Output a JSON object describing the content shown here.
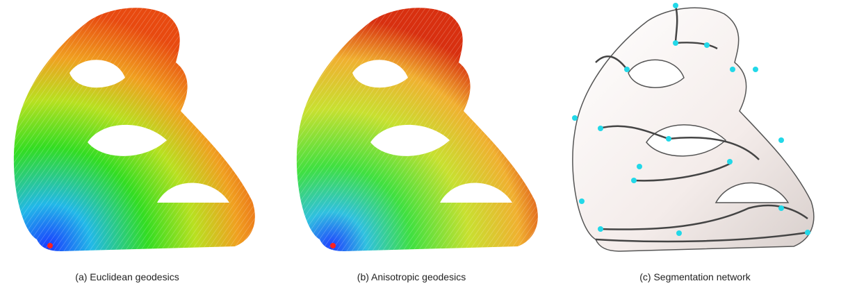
{
  "figure": {
    "panels": [
      {
        "caption": "(a) Euclidean geodesics"
      },
      {
        "caption": "(b) Anisotropic geodesics"
      },
      {
        "caption": "(c) Segmentation network"
      }
    ]
  }
}
